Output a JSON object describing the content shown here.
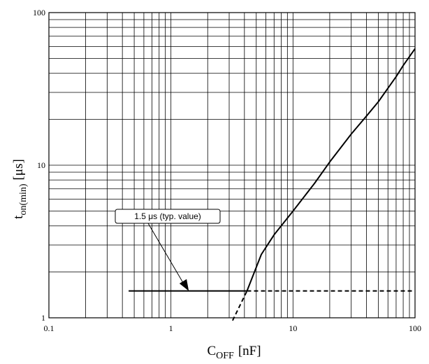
{
  "chart_data": {
    "type": "line",
    "xscale": "log",
    "yscale": "log",
    "xlim": [
      0.1,
      100
    ],
    "ylim": [
      1,
      100
    ],
    "grid": true,
    "x_ticks": [
      {
        "value": 0.1,
        "label": "0.1"
      },
      {
        "value": 1,
        "label": "1"
      },
      {
        "value": 10,
        "label": "10"
      },
      {
        "value": 100,
        "label": "100"
      }
    ],
    "y_ticks": [
      {
        "value": 1,
        "label": "1"
      },
      {
        "value": 10,
        "label": "10"
      },
      {
        "value": 100,
        "label": "100"
      }
    ],
    "xlabel": {
      "main": "C",
      "sub": "OFF",
      "unit": "[nF]"
    },
    "ylabel": {
      "main": "t",
      "sub": "on(min)",
      "unit": "[μs]"
    },
    "series": [
      {
        "style": "solid",
        "points": [
          [
            0.45,
            1.5
          ],
          [
            4.2,
            1.5
          ],
          [
            5.5,
            2.6
          ],
          [
            7,
            3.5
          ],
          [
            10,
            5.0
          ],
          [
            15,
            7.6
          ],
          [
            20,
            10.5
          ],
          [
            30,
            16
          ],
          [
            40,
            21
          ],
          [
            50,
            26
          ],
          [
            60,
            32
          ],
          [
            70,
            38
          ],
          [
            80,
            45
          ],
          [
            100,
            58
          ]
        ]
      },
      {
        "style": "dashed",
        "points": [
          [
            4.2,
            1.5
          ],
          [
            100,
            1.5
          ]
        ]
      },
      {
        "style": "dashed",
        "points": [
          [
            3.2,
            0.96
          ],
          [
            4.2,
            1.5
          ]
        ]
      }
    ],
    "annotations": [
      {
        "text": "1.5 μs (typ. value)",
        "target": [
          1.4,
          1.5
        ]
      }
    ]
  }
}
